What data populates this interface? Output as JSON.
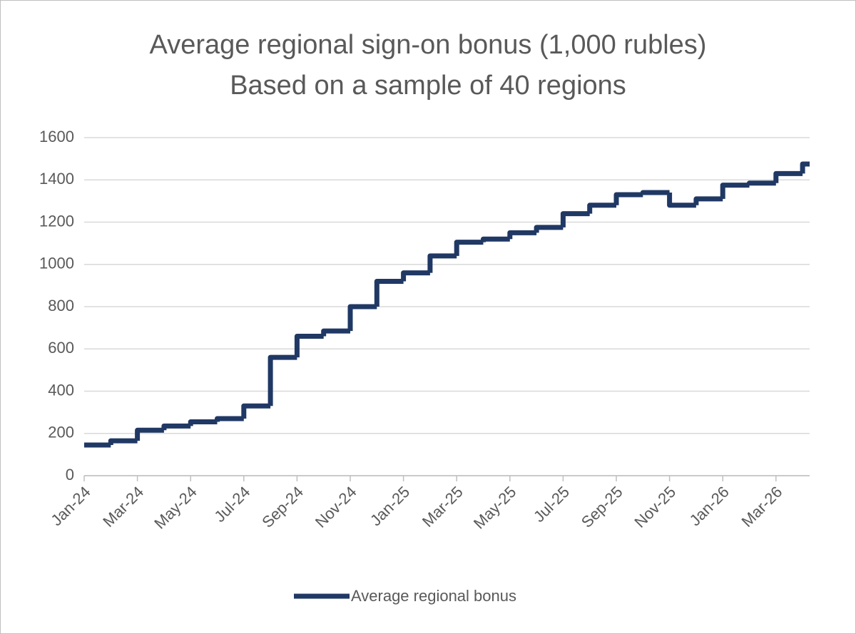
{
  "chart_data": {
    "type": "line",
    "step": true,
    "title": [
      "Average regional sign-on bonus (1,000 rubles)",
      "Based on a sample of 40 regions"
    ],
    "categories": [
      "Jan-24",
      null,
      "Mar-24",
      null,
      "May-24",
      null,
      "Jul-24",
      null,
      "Sep-24",
      null,
      "Nov-24",
      null,
      "Jan-25",
      null,
      "Mar-25",
      null,
      "May-25",
      null,
      "Jul-25",
      null,
      "Sep-25",
      null,
      "Nov-25",
      null,
      "Jan-26",
      null,
      "Mar-26",
      null
    ],
    "series": [
      {
        "name": "Average regional bonus",
        "color": "#203864",
        "values": [
          145,
          165,
          215,
          235,
          255,
          270,
          330,
          560,
          660,
          685,
          800,
          920,
          960,
          1040,
          1105,
          1120,
          1150,
          1175,
          1240,
          1280,
          1330,
          1340,
          1280,
          1310,
          1375,
          1385,
          1430,
          1475
        ]
      }
    ],
    "ylim": [
      0,
      1600
    ],
    "yticks": [
      0,
      200,
      400,
      600,
      800,
      1000,
      1200,
      1400,
      1600
    ],
    "grid": true,
    "legend": "bottom"
  }
}
